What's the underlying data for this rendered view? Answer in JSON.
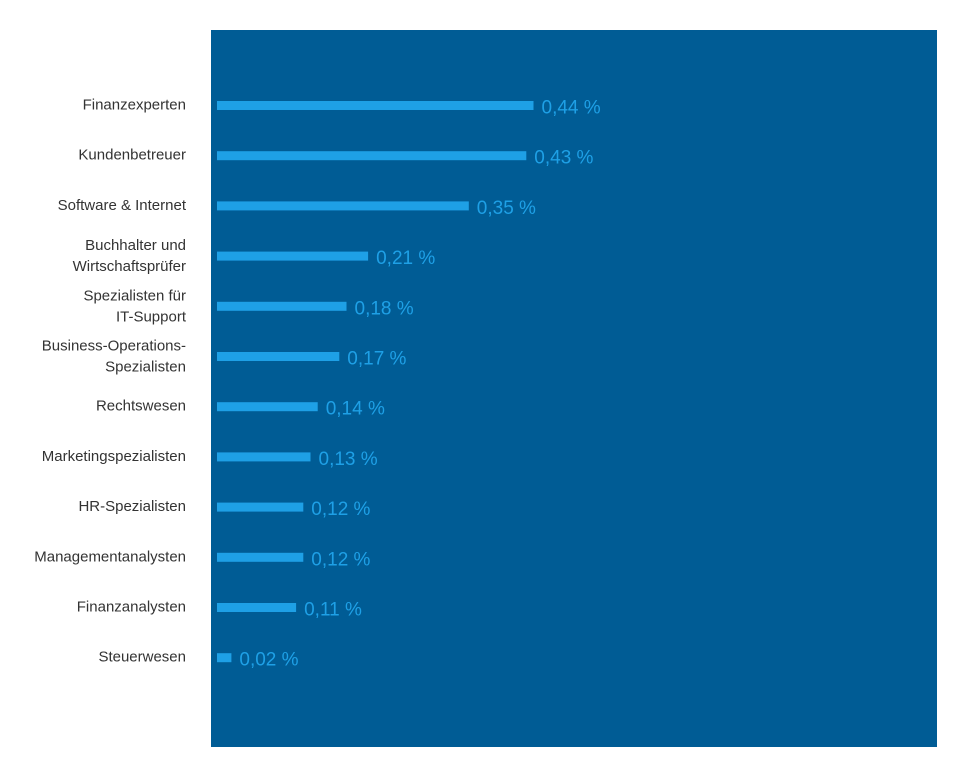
{
  "colors": {
    "background": "#ffffff",
    "panel": "#005c95",
    "bar": "#1ea0e6",
    "value_label": "#1ea0e6",
    "category_label": "#333333"
  },
  "chart_data": {
    "type": "bar",
    "orientation": "horizontal",
    "categories": [
      [
        "Finanzexperten"
      ],
      [
        "Kundenbetreuer"
      ],
      [
        "Software & Internet"
      ],
      [
        "Buchhalter und",
        "Wirtschaftsprüfer"
      ],
      [
        "Spezialisten für",
        "IT-Support"
      ],
      [
        "Business-Operations-",
        "Spezialisten"
      ],
      [
        "Rechtswesen"
      ],
      [
        "Marketingspezialisten"
      ],
      [
        "HR-Spezialisten"
      ],
      [
        "Managementanalysten"
      ],
      [
        "Finanzanalysten"
      ],
      [
        "Steuerwesen"
      ]
    ],
    "values": [
      0.44,
      0.43,
      0.35,
      0.21,
      0.18,
      0.17,
      0.14,
      0.13,
      0.12,
      0.12,
      0.11,
      0.02
    ],
    "value_labels": [
      "0,44 %",
      "0,43 %",
      "0,35 %",
      "0,21 %",
      "0,18 %",
      "0,17 %",
      "0,14 %",
      "0,13 %",
      "0,12 %",
      "0,12 %",
      "0,11 %",
      "0,02 %"
    ],
    "title": "",
    "xlabel": "",
    "ylabel": "",
    "xlim": [
      0,
      1.0
    ],
    "grid": false,
    "legend": "none"
  }
}
